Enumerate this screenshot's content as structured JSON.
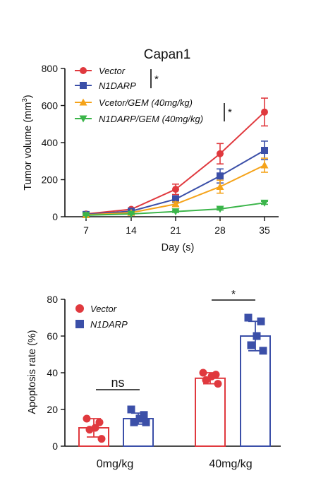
{
  "chart_data": [
    {
      "type": "line",
      "title": "Capan1",
      "xlabel": "Day (s)",
      "ylabel_main": "Tumor volume (mm",
      "ylabel_sup": "3",
      "ylabel_end": ")",
      "x": [
        7,
        14,
        21,
        28,
        35
      ],
      "xticks": [
        "7",
        "14",
        "21",
        "28",
        "35"
      ],
      "yticks": [
        "0",
        "200",
        "400",
        "600",
        "800"
      ],
      "ylim": [
        0,
        800
      ],
      "series": [
        {
          "name": "Vector",
          "color": "#e0393e",
          "marker": "circle",
          "values": [
            15,
            40,
            148,
            340,
            565
          ],
          "errors": [
            5,
            6,
            28,
            55,
            75
          ]
        },
        {
          "name": "N1DARP",
          "color": "#3b4fa8",
          "marker": "square",
          "values": [
            12,
            30,
            95,
            220,
            358
          ],
          "errors": [
            4,
            5,
            18,
            38,
            50
          ]
        },
        {
          "name": "Vcetor/GEM (40mg/kg)",
          "color": "#f5a31a",
          "marker": "triangle-up",
          "values": [
            10,
            22,
            68,
            162,
            278
          ],
          "errors": [
            3,
            4,
            12,
            35,
            38
          ]
        },
        {
          "name": "N1DARP/GEM (40mg/kg)",
          "color": "#3bb54a",
          "marker": "triangle-down",
          "values": [
            8,
            15,
            28,
            42,
            75
          ],
          "errors": [
            2,
            3,
            5,
            6,
            8
          ]
        }
      ],
      "significance": [
        "*",
        "*"
      ]
    },
    {
      "type": "bar",
      "ylabel": "Apoptosis rate (%)",
      "categories": [
        "0mg/kg",
        "40mg/kg"
      ],
      "yticks": [
        "0",
        "20",
        "40",
        "60",
        "80"
      ],
      "ylim": [
        0,
        80
      ],
      "series": [
        {
          "name": "Vector",
          "color": "#e0393e",
          "marker": "circle",
          "values": [
            10,
            37
          ],
          "errors": [
            5,
            3
          ],
          "points": [
            [
              15,
              13,
              10,
              9,
              4
            ],
            [
              40,
              39,
              38,
              36,
              34
            ]
          ]
        },
        {
          "name": "N1DARP",
          "color": "#3b4fa8",
          "marker": "square",
          "values": [
            15,
            60
          ],
          "errors": [
            3,
            8
          ],
          "points": [
            [
              20,
              17,
              15,
              13,
              13
            ],
            [
              70,
              68,
              60,
              55,
              52
            ]
          ]
        }
      ],
      "annotations": [
        {
          "group": 0,
          "label": "ns"
        },
        {
          "group": 1,
          "label": "*"
        }
      ]
    }
  ]
}
